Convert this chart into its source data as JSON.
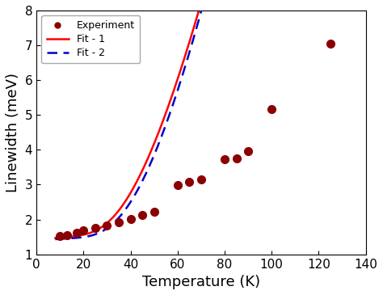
{
  "title": "",
  "xlabel": "Temperature (K)",
  "ylabel": "Linewidth (meV)",
  "xlim": [
    0,
    140
  ],
  "ylim": [
    1,
    8
  ],
  "xticks": [
    0,
    20,
    40,
    60,
    80,
    100,
    120,
    140
  ],
  "yticks": [
    1,
    2,
    3,
    4,
    5,
    6,
    7,
    8
  ],
  "exp_x": [
    10,
    13,
    17,
    20,
    25,
    30,
    35,
    40,
    45,
    50,
    60,
    65,
    70,
    80,
    85,
    90,
    100,
    125
  ],
  "exp_y": [
    1.52,
    1.55,
    1.62,
    1.68,
    1.75,
    1.82,
    1.93,
    2.02,
    2.12,
    2.23,
    2.98,
    3.08,
    3.15,
    3.72,
    3.75,
    3.97,
    5.17,
    7.05
  ],
  "exp_color": "#8B0000",
  "exp_marker": "o",
  "exp_markersize": 7,
  "fit1_color": "#FF0000",
  "fit2_color": "#0000CC",
  "fit1_linewidth": 1.8,
  "fit2_linewidth": 1.8,
  "legend_labels": [
    "Experiment",
    "Fit - 1",
    "Fit - 2"
  ],
  "background_color": "#ffffff",
  "figsize": [
    4.74,
    3.65
  ],
  "dpi": 100,
  "fit1_params": [
    1.42,
    0.006,
    52.0,
    155.0
  ],
  "fit2_params": [
    1.4,
    0.004,
    65.0,
    170.0
  ]
}
